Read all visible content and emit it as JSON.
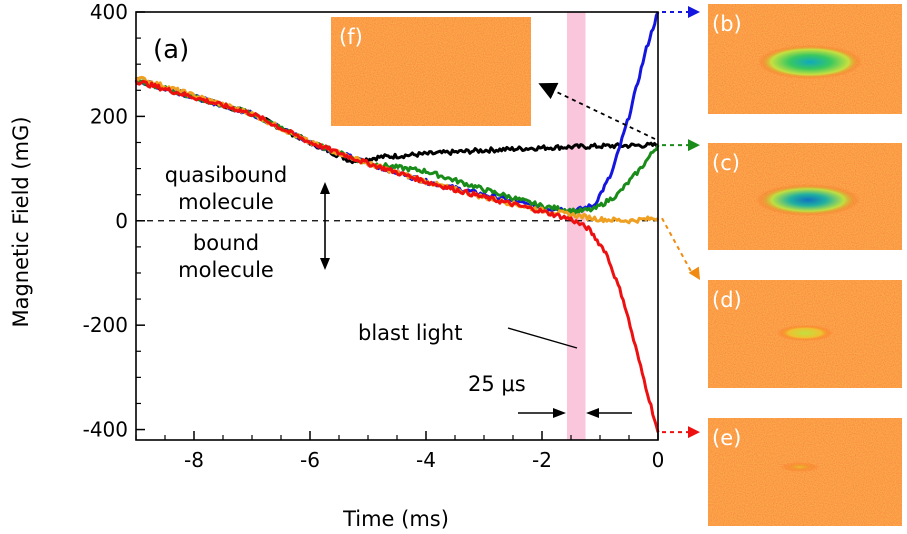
{
  "chart_data": {
    "type": "line",
    "title": "",
    "xlabel": "Time (ms)",
    "ylabel": "Magnetic Field (mG)",
    "xlim": [
      -9,
      0
    ],
    "ylim": [
      -420,
      400
    ],
    "xticks": [
      -8,
      -6,
      -4,
      -2,
      0
    ],
    "yticks": [
      400,
      200,
      0,
      -200,
      -400
    ],
    "xtick_labels": [
      "-8",
      "-6",
      "-4",
      "-2",
      "0"
    ],
    "ytick_labels": [
      "400",
      "200",
      "0",
      "-200",
      "-400"
    ],
    "grid": false,
    "series": [
      {
        "name": "black (c) quasibound",
        "color": "#000000",
        "x": [
          -9.0,
          -7.0,
          -6.0,
          -5.3,
          -5.0,
          -4.8,
          -4.0,
          -3.0,
          -2.0,
          -1.0,
          0.0
        ],
        "y": [
          270,
          205,
          150,
          115,
          118,
          122,
          128,
          135,
          140,
          143,
          145
        ]
      },
      {
        "name": "blue (b)",
        "color": "#1515e0",
        "x": [
          -9.0,
          -7.0,
          -6.0,
          -5.0,
          -4.0,
          -3.0,
          -2.0,
          -1.4,
          -1.1,
          -0.8,
          -0.5,
          -0.2,
          0.0
        ],
        "y": [
          270,
          205,
          150,
          110,
          75,
          50,
          25,
          20,
          30,
          90,
          200,
          330,
          400
        ]
      },
      {
        "name": "green (c)",
        "color": "#1a8c1a",
        "x": [
          -9.0,
          -7.0,
          -6.0,
          -5.0,
          -4.0,
          -3.0,
          -2.0,
          -1.4,
          -1.1,
          -0.7,
          -0.3,
          0.0
        ],
        "y": [
          270,
          205,
          150,
          110,
          95,
          60,
          28,
          18,
          22,
          50,
          100,
          145
        ]
      },
      {
        "name": "orange (d)",
        "color": "#f0a020",
        "x": [
          -9.0,
          -7.0,
          -6.0,
          -5.0,
          -4.0,
          -3.0,
          -2.0,
          -1.4,
          -1.0,
          -0.5,
          0.0
        ],
        "y": [
          275,
          205,
          150,
          110,
          75,
          45,
          20,
          10,
          3,
          0,
          5
        ]
      },
      {
        "name": "red (e)",
        "color": "#ee1010",
        "x": [
          -9.0,
          -7.0,
          -6.0,
          -5.0,
          -4.0,
          -3.0,
          -2.0,
          -1.5,
          -1.2,
          -0.9,
          -0.6,
          -0.3,
          0.0
        ],
        "y": [
          268,
          205,
          150,
          110,
          75,
          45,
          18,
          3,
          -15,
          -60,
          -150,
          -280,
          -405
        ]
      }
    ],
    "annotations": {
      "panel_label": "(a)",
      "quasibound": [
        "quasibound",
        "molecule"
      ],
      "bound": [
        "bound",
        "molecule"
      ],
      "blast": "blast light",
      "duration": "25 μs"
    },
    "insets": [
      {
        "label": "(f)",
        "blob_scale": 0
      },
      {
        "label": "(b)",
        "blob_scale": 1.0,
        "core": "#1ab0c8"
      },
      {
        "label": "(c)",
        "blob_scale": 1.0,
        "core": "#1890c0"
      },
      {
        "label": "(d)",
        "blob_scale": 0.55,
        "core": "#c8d830"
      },
      {
        "label": "(e)",
        "blob_scale": 0.35,
        "core": "#e0b020"
      }
    ],
    "arrow_colors": {
      "b": "#1515e0",
      "c": "#1a8c1a",
      "d": "#f08a10",
      "e": "#ee1010"
    }
  }
}
